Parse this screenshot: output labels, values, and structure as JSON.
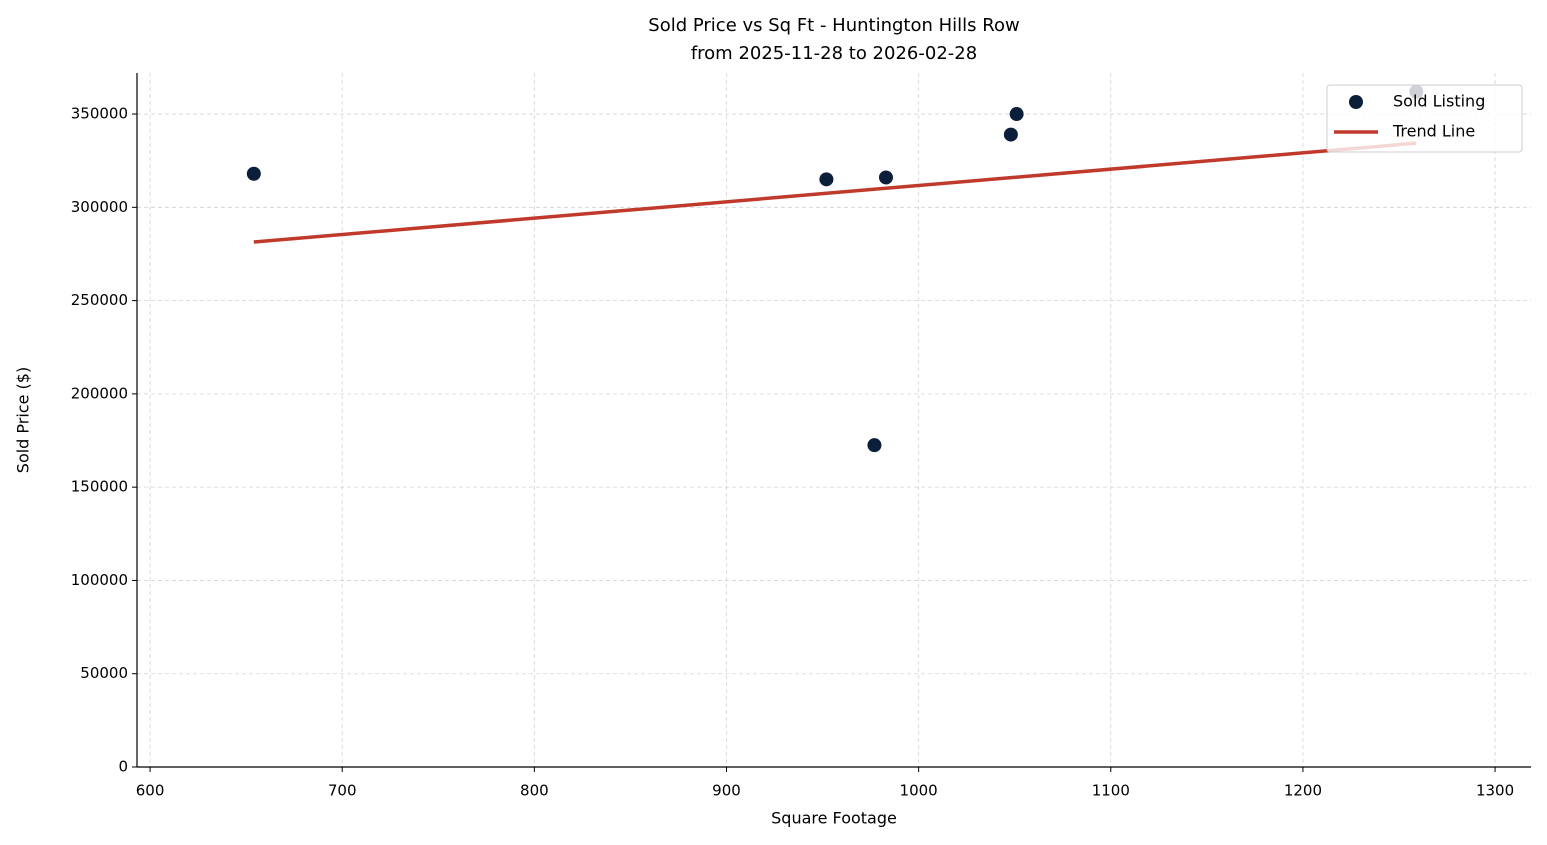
{
  "chart_data": {
    "type": "scatter",
    "title": "Sold Price vs Sq Ft - Huntington Hills Row",
    "subtitle": "from 2025-11-28 to 2026-02-28",
    "x_label": "Square Footage",
    "y_label": "Sold Price ($)",
    "xlim": [
      593.2,
      1318.7
    ],
    "ylim": [
      0,
      372000
    ],
    "xticks": [
      600,
      700,
      800,
      900,
      1000,
      1100,
      1200,
      1300
    ],
    "yticks": [
      0,
      50000,
      100000,
      150000,
      200000,
      250000,
      300000,
      350000
    ],
    "grid": true,
    "legend": "upper-right",
    "series": [
      {
        "name": "Sold Listing",
        "color": "#0b1f3a",
        "style": "points",
        "x": [
          654,
          952,
          983,
          977,
          1048,
          1051,
          1259
        ],
        "values": [
          318000,
          315000,
          316000,
          172500,
          339000,
          350000,
          362000
        ]
      },
      {
        "name": "Trend Line",
        "color": "#c0392b",
        "style": "line",
        "x": [
          654,
          1259
        ],
        "values": [
          281400,
          334400
        ]
      }
    ]
  }
}
